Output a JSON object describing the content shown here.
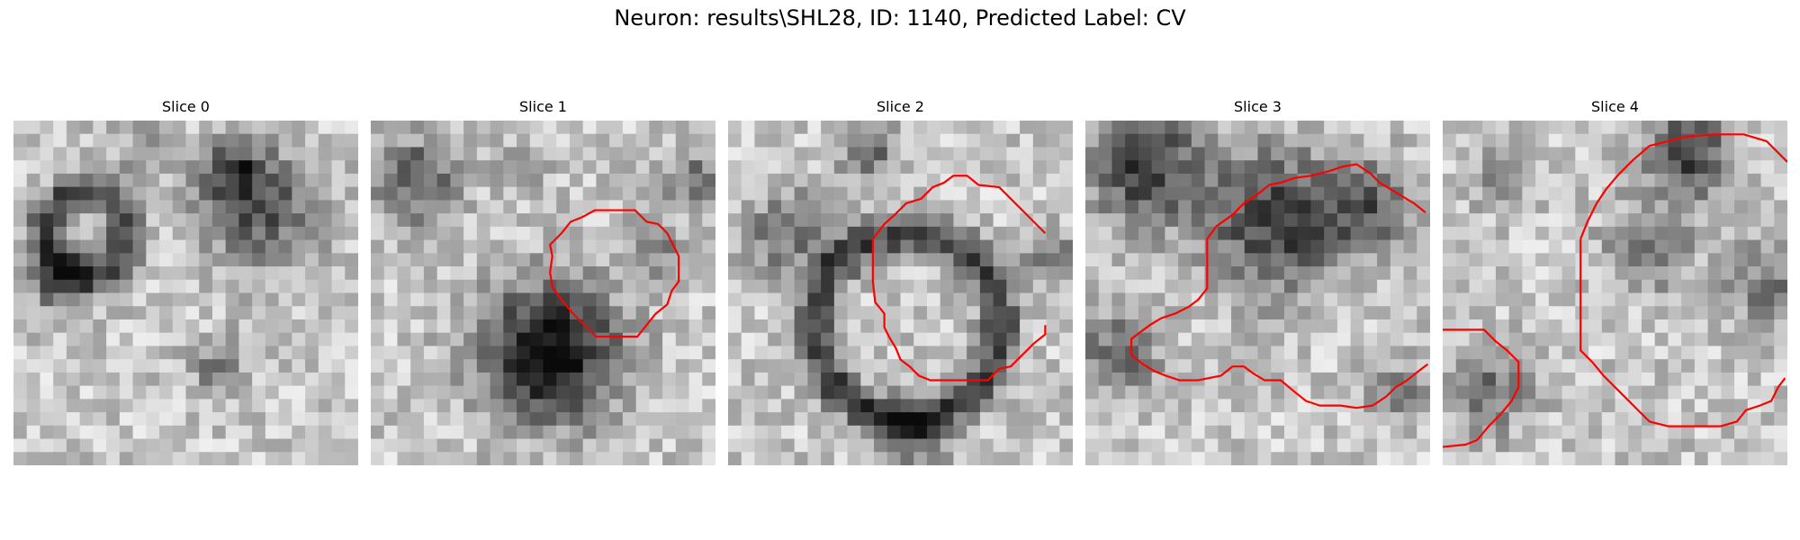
{
  "figure": {
    "title": "Neuron: results\\SHL28, ID: 1140, Predicted Label: CV",
    "slices": [
      {
        "label": "Slice 0",
        "contour": false
      },
      {
        "label": "Slice 1",
        "contour": true
      },
      {
        "label": "Slice 2",
        "contour": true
      },
      {
        "label": "Slice 3",
        "contour": true
      },
      {
        "label": "Slice 4",
        "contour": true
      }
    ],
    "colors": {
      "contour": "#ff0000",
      "pixel_dark": "#111111",
      "pixel_light": "#f4f4f4"
    },
    "image_icon": "grayscale-microscopy-tile"
  }
}
